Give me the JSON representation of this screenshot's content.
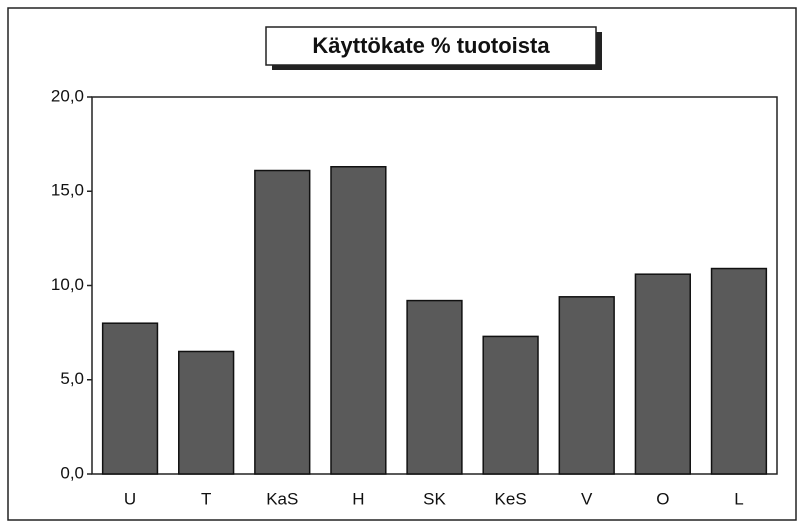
{
  "chart_data": {
    "type": "bar",
    "title": "Käyttökate % tuotoista",
    "categories": [
      "U",
      "T",
      "KaS",
      "H",
      "SK",
      "KeS",
      "V",
      "O",
      "L"
    ],
    "values": [
      8.0,
      6.5,
      16.1,
      16.3,
      9.2,
      7.3,
      9.4,
      10.6,
      10.9
    ],
    "color": "#5a5a5a",
    "ylim": [
      0,
      20
    ],
    "yticks": [
      {
        "value": 0,
        "label": "0,0"
      },
      {
        "value": 5,
        "label": "5,0"
      },
      {
        "value": 10,
        "label": "10,0"
      },
      {
        "value": 15,
        "label": "15,0"
      },
      {
        "value": 20,
        "label": "20,0"
      }
    ],
    "grid": false
  }
}
